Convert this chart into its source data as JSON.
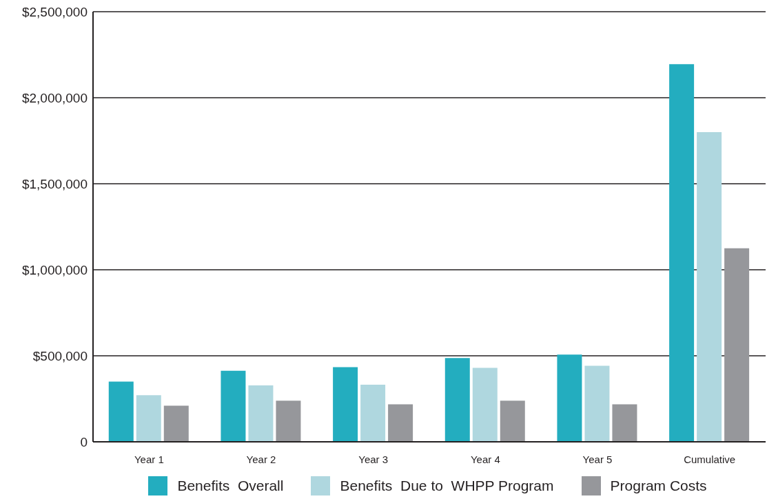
{
  "chart_data": {
    "type": "bar",
    "categories": [
      "Year 1",
      "Year 2",
      "Year 3",
      "Year 4",
      "Year 5",
      "Cumulative"
    ],
    "series": [
      {
        "name": "Benefits  Overall",
        "color": "#23adbf",
        "values": [
          350000,
          413000,
          434000,
          487000,
          507000,
          2195000
        ]
      },
      {
        "name": "Benefits  Due to  WHPP Program",
        "color": "#afd7df",
        "values": [
          271000,
          328000,
          332000,
          430000,
          442000,
          1800000
        ]
      },
      {
        "name": "Program Costs",
        "color": "#96979b",
        "values": [
          210000,
          239000,
          218000,
          239000,
          218000,
          1125000
        ]
      }
    ],
    "ylim": [
      0,
      2500000
    ],
    "yticks": [
      {
        "value": 0,
        "label": "0"
      },
      {
        "value": 500000,
        "label": "$500,000"
      },
      {
        "value": 1000000,
        "label": "$1,000,000"
      },
      {
        "value": 1500000,
        "label": "$1,500,000"
      },
      {
        "value": 2000000,
        "label": "$2,000,000"
      },
      {
        "value": 2500000,
        "label": "$2,500,000"
      }
    ],
    "grid": "y",
    "legend": "bottom"
  }
}
